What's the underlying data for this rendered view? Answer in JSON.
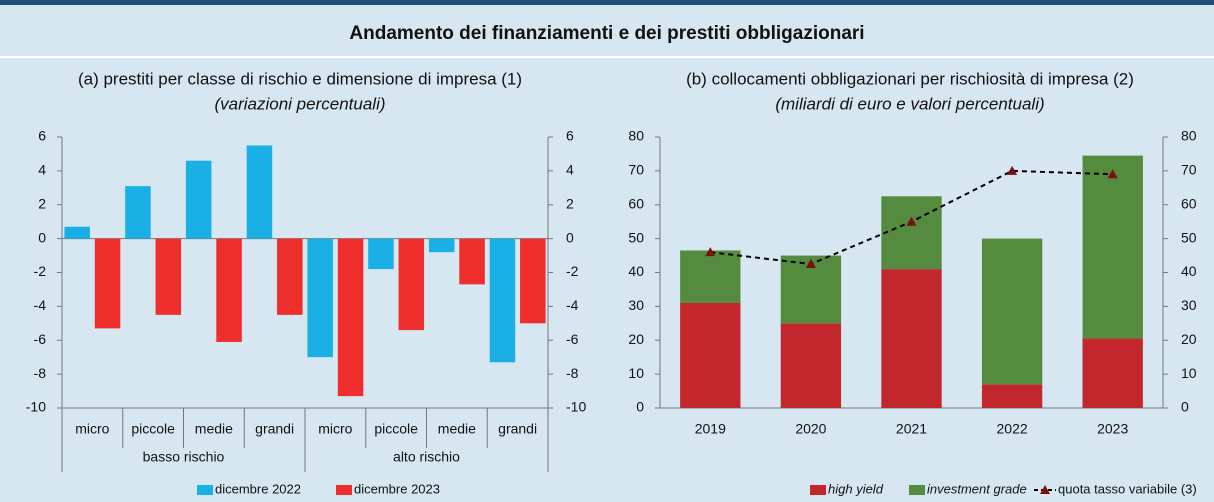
{
  "title": "Andamento dei finanziamenti e dei prestiti obbligazionari",
  "chart_data": [
    {
      "type": "bar",
      "title": "(a) prestiti per classe di rischio e dimensione di impresa (1)",
      "subtitle": "(variazioni percentuali)",
      "categories": [
        "micro",
        "piccole",
        "medie",
        "grandi",
        "micro",
        "piccole",
        "medie",
        "grandi"
      ],
      "groups": [
        "basso rischio",
        "alto rischio"
      ],
      "series": [
        {
          "name": "dicembre 2022",
          "color": "#1ab0e6",
          "values": [
            0.7,
            3.1,
            4.6,
            5.5,
            -7.0,
            -1.8,
            -0.8,
            -7.3
          ]
        },
        {
          "name": "dicembre 2023",
          "color": "#ee2d2d",
          "values": [
            -5.3,
            -4.5,
            -6.1,
            -4.5,
            -9.3,
            -5.4,
            -2.7,
            -5.0
          ]
        }
      ],
      "ylim": [
        -10,
        6
      ],
      "yticks": [
        -10,
        -8,
        -6,
        -4,
        -2,
        0,
        2,
        4,
        6
      ],
      "y2lim": [
        -10,
        6
      ],
      "y2ticks": [
        -10,
        -8,
        -6,
        -4,
        -2,
        0,
        2,
        4,
        6
      ]
    },
    {
      "type": "stacked_bar",
      "title": "(b) collocamenti obbligazionari per rischiosità di impresa (2)",
      "subtitle": "(miliardi di euro e valori percentuali)",
      "categories": [
        "2019",
        "2020",
        "2021",
        "2022",
        "2023"
      ],
      "series": [
        {
          "name": "high yield",
          "color": "#c1272d",
          "values": [
            31,
            25,
            41,
            7,
            20.5
          ]
        },
        {
          "name": "investment grade",
          "color": "#548b3f",
          "values": [
            15.5,
            20,
            21.5,
            43,
            54
          ]
        },
        {
          "name": "quota tasso variabile (3)",
          "color": "#000000",
          "marker_color": "#7a1010",
          "type": "line",
          "axis": "y2",
          "values": [
            46,
            42.5,
            55,
            70,
            69
          ]
        }
      ],
      "ylim": [
        0,
        80
      ],
      "yticks": [
        0,
        10,
        20,
        30,
        40,
        50,
        60,
        70,
        80
      ],
      "y2lim": [
        0,
        80
      ],
      "y2ticks": [
        0,
        10,
        20,
        30,
        40,
        50,
        60,
        70,
        80
      ]
    }
  ]
}
